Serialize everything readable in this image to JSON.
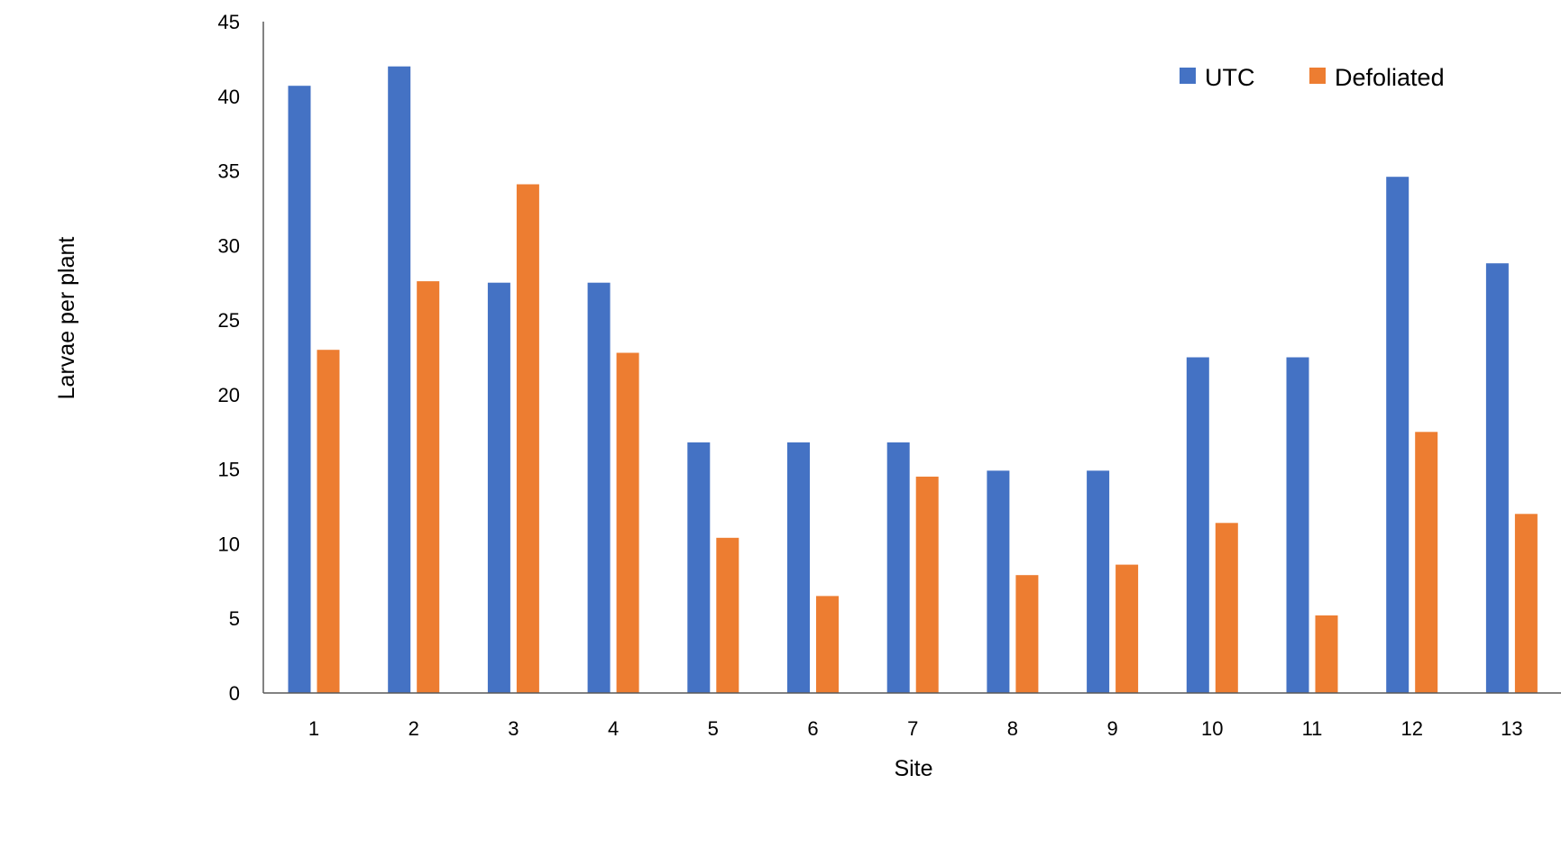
{
  "chart_data": {
    "type": "bar",
    "title": "",
    "xlabel": "Site",
    "ylabel": "Larvae per plant",
    "categories": [
      "1",
      "2",
      "3",
      "4",
      "5",
      "6",
      "7",
      "8",
      "9",
      "10",
      "11",
      "12",
      "13"
    ],
    "ylim": [
      0,
      45
    ],
    "yticks": [
      0,
      5,
      10,
      15,
      20,
      25,
      30,
      35,
      40,
      45
    ],
    "grid": false,
    "legend_position": "top-right",
    "series": [
      {
        "name": "UTC",
        "color": "#4472C4",
        "values": [
          40.7,
          42.0,
          27.5,
          27.5,
          16.8,
          16.8,
          16.8,
          14.9,
          14.9,
          22.5,
          22.5,
          34.6,
          28.8
        ]
      },
      {
        "name": "Defoliated",
        "color": "#ED7D31",
        "values": [
          23.0,
          27.6,
          34.1,
          22.8,
          10.4,
          6.5,
          14.5,
          7.9,
          8.6,
          11.4,
          5.2,
          17.5,
          12.0
        ]
      }
    ]
  }
}
